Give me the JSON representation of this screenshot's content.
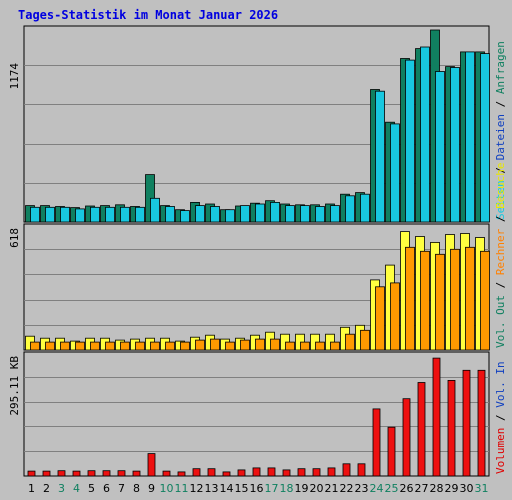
{
  "chart_data": [
    {
      "type": "bar",
      "title": "Tages-Statistik im Monat Januar 2026",
      "ytick_label": "1174",
      "ylim": [
        0,
        1174
      ],
      "legend_right": [
        {
          "text": "Anfragen",
          "color": "#108060"
        },
        {
          "text": "Dateien",
          "color": "#1040c0"
        },
        {
          "text": "Seiten",
          "color": "#18c8e0"
        }
      ],
      "categories": [
        "1",
        "2",
        "3",
        "4",
        "5",
        "6",
        "7",
        "8",
        "9",
        "10",
        "11",
        "12",
        "13",
        "14",
        "15",
        "16",
        "17",
        "18",
        "19",
        "20",
        "21",
        "22",
        "23",
        "24",
        "25",
        "26",
        "27",
        "28",
        "29",
        "30",
        "31"
      ],
      "series": [
        {
          "name": "Anfragen",
          "color": "#108060",
          "values": [
            100,
            100,
            95,
            88,
            98,
            100,
            105,
            95,
            290,
            100,
            75,
            120,
            110,
            75,
            98,
            115,
            130,
            110,
            105,
            105,
            110,
            170,
            180,
            810,
            610,
            1000,
            1060,
            1174,
            950,
            1040,
            1040
          ]
        },
        {
          "name": "Seiten",
          "color": "#18c8e0",
          "values": [
            90,
            90,
            90,
            80,
            90,
            90,
            90,
            90,
            145,
            95,
            70,
            100,
            95,
            75,
            100,
            110,
            120,
            100,
            100,
            95,
            100,
            160,
            170,
            800,
            600,
            990,
            1070,
            920,
            945,
            1040,
            1030
          ]
        }
      ]
    },
    {
      "type": "bar",
      "ytick_label": "618",
      "ylim": [
        0,
        618
      ],
      "legend_right": [
        {
          "text": "Besuche",
          "color": "#e8e800"
        },
        {
          "text": "Rechner",
          "color": "#ff8000"
        },
        {
          "text": "Vol. Out",
          "color": "#108060"
        }
      ],
      "categories": [
        "1",
        "2",
        "3",
        "4",
        "5",
        "6",
        "7",
        "8",
        "9",
        "10",
        "11",
        "12",
        "13",
        "14",
        "15",
        "16",
        "17",
        "18",
        "19",
        "20",
        "21",
        "22",
        "23",
        "24",
        "25",
        "26",
        "27",
        "28",
        "29",
        "30",
        "31"
      ],
      "series": [
        {
          "name": "Besuche",
          "color": "#ffff40",
          "values": [
            70,
            60,
            60,
            45,
            60,
            60,
            50,
            55,
            60,
            60,
            45,
            65,
            75,
            55,
            60,
            75,
            90,
            80,
            80,
            80,
            80,
            115,
            125,
            355,
            430,
            600,
            575,
            545,
            585,
            590,
            570
          ]
        },
        {
          "name": "Rechner",
          "color": "#ff9900",
          "values": [
            40,
            40,
            40,
            40,
            40,
            40,
            40,
            40,
            40,
            40,
            40,
            50,
            55,
            40,
            50,
            55,
            55,
            40,
            40,
            40,
            40,
            80,
            100,
            320,
            340,
            520,
            500,
            485,
            510,
            520,
            500
          ]
        }
      ]
    },
    {
      "type": "bar",
      "ytick_label": "295.11 KB",
      "ylim": [
        0,
        295.11
      ],
      "legend_right": [
        {
          "text": "Vol. In",
          "color": "#1040c0"
        },
        {
          "text": "Volumen",
          "color": "#e00000"
        }
      ],
      "categories": [
        "1",
        "2",
        "3",
        "4",
        "5",
        "6",
        "7",
        "8",
        "9",
        "10",
        "11",
        "12",
        "13",
        "14",
        "15",
        "16",
        "17",
        "18",
        "19",
        "20",
        "21",
        "22",
        "23",
        "24",
        "25",
        "26",
        "27",
        "28",
        "29",
        "30",
        "31"
      ],
      "series": [
        {
          "name": "Volumen",
          "color": "#ee1010",
          "values": [
            12,
            12,
            13,
            12,
            13,
            13,
            13,
            12,
            55,
            12,
            10,
            18,
            18,
            10,
            15,
            20,
            20,
            15,
            18,
            18,
            20,
            30,
            30,
            165,
            120,
            190,
            230,
            290,
            235,
            260,
            260
          ]
        }
      ],
      "x_label_colors": {
        "weekend": "#108060",
        "weekday": "#000000"
      },
      "weekend_days": [
        "3",
        "4",
        "10",
        "11",
        "17",
        "18",
        "24",
        "25",
        "31"
      ]
    }
  ]
}
